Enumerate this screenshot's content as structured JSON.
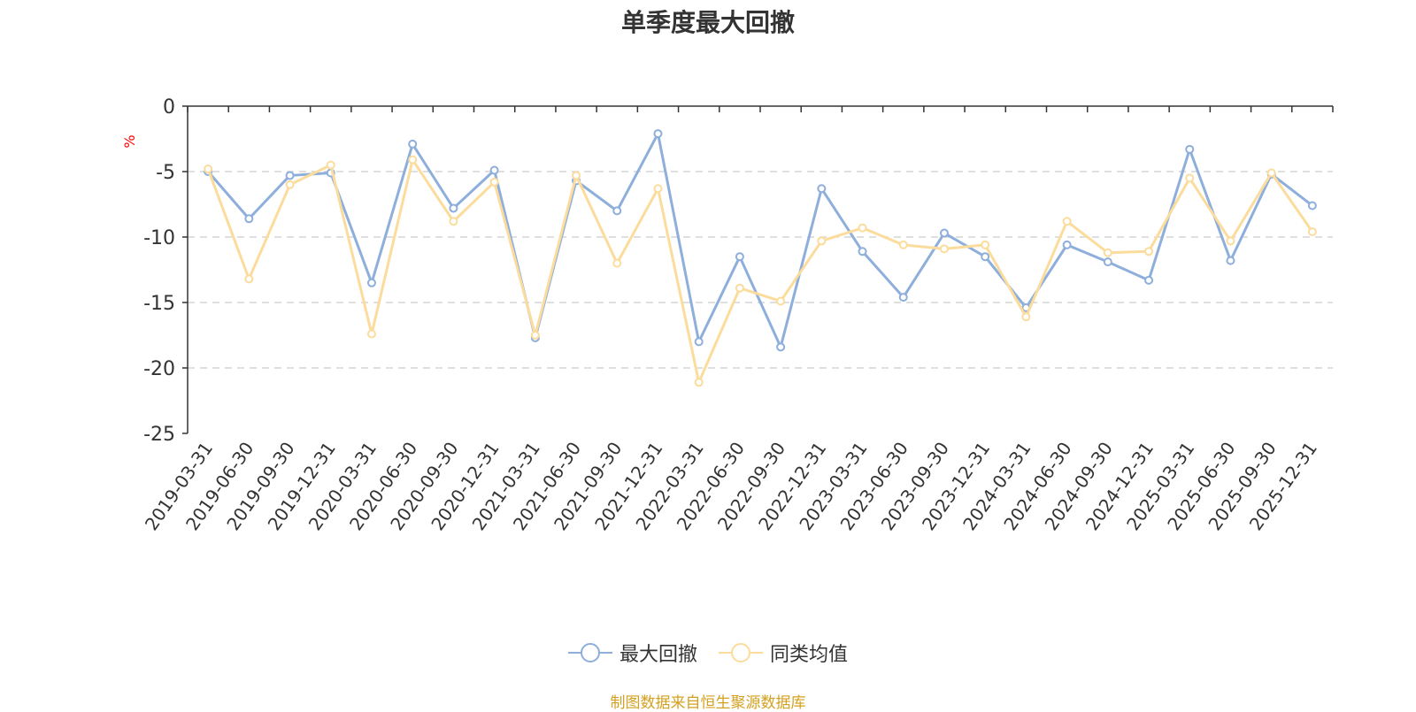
{
  "chart_data": {
    "type": "line",
    "title": "单季度最大回撤",
    "ylabel": "%",
    "xlabel": "",
    "ylim": [
      -25,
      0
    ],
    "yticks": [
      0,
      -5,
      -10,
      -15,
      -20,
      -25
    ],
    "grid": true,
    "legend_position": "bottom-center",
    "categories": [
      "2019-03-31",
      "2019-06-30",
      "2019-09-30",
      "2019-12-31",
      "2020-03-31",
      "2020-06-30",
      "2020-09-30",
      "2020-12-31",
      "2021-03-31",
      "2021-06-30",
      "2021-09-30",
      "2021-12-31",
      "2022-03-31",
      "2022-06-30",
      "2022-09-30",
      "2022-12-31",
      "2023-03-31",
      "2023-06-30",
      "2023-09-30",
      "2023-12-31",
      "2024-03-31",
      "2024-06-30",
      "2024-09-30",
      "2024-12-31",
      "2025-03-31",
      "2025-06-30",
      "2025-09-30",
      "2025-12-31"
    ],
    "series": [
      {
        "name": "最大回撤",
        "color": "#8eaedb",
        "values": [
          -5.0,
          -8.6,
          -5.3,
          -5.1,
          -13.5,
          -2.9,
          -7.8,
          -4.9,
          -17.7,
          -5.7,
          -8.0,
          -2.1,
          -18.0,
          -11.5,
          -18.4,
          -6.3,
          -11.1,
          -14.6,
          -9.7,
          -11.5,
          -15.4,
          -10.6,
          -11.9,
          -13.3,
          -3.3,
          -11.8,
          -5.2,
          -7.6
        ]
      },
      {
        "name": "同类均值",
        "color": "#fbdc9c",
        "values": [
          -4.8,
          -13.2,
          -6.0,
          -4.5,
          -17.4,
          -4.1,
          -8.8,
          -5.8,
          -17.5,
          -5.3,
          -12.0,
          -6.3,
          -21.1,
          -13.9,
          -14.9,
          -10.3,
          -9.3,
          -10.6,
          -10.9,
          -10.6,
          -16.1,
          -8.8,
          -11.2,
          -11.1,
          -5.5,
          -10.3,
          -5.1,
          -9.6
        ]
      }
    ]
  },
  "source_text": "制图数据来自恒生聚源数据库",
  "colors": {
    "axis": "#333333",
    "grid": "#cccccc",
    "ylabel": "#ff0000",
    "source": "#d4a020",
    "text": "#333333"
  }
}
